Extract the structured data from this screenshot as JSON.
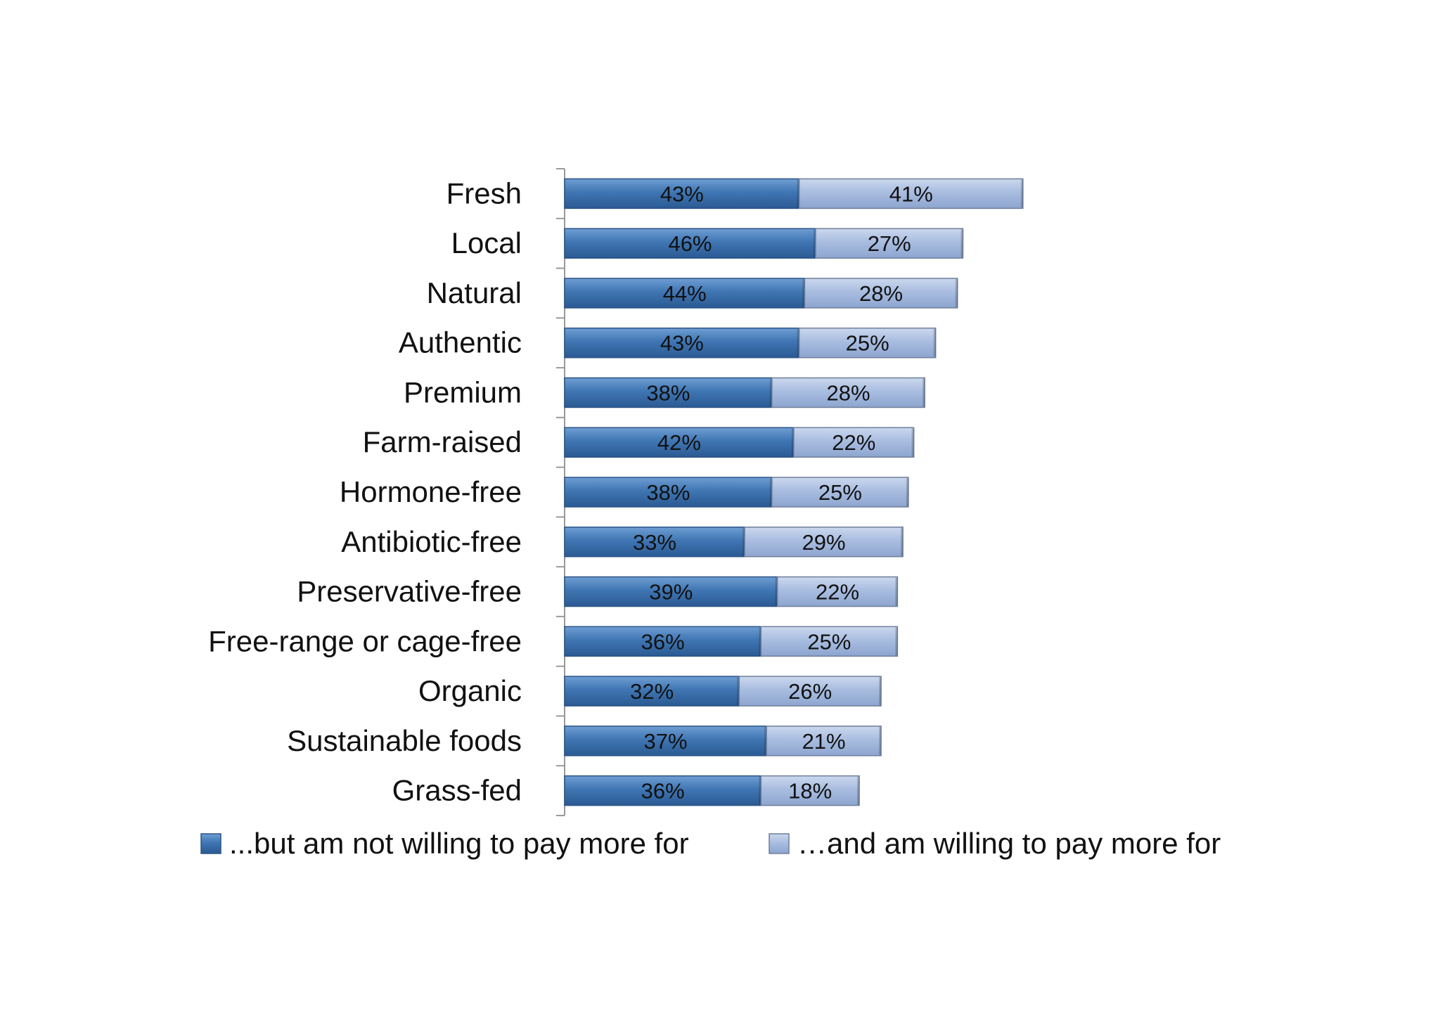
{
  "chart_data": {
    "type": "bar",
    "orientation": "horizontal",
    "stacked": true,
    "categories": [
      "Fresh",
      "Local",
      "Natural",
      "Authentic",
      "Premium",
      "Farm-raised",
      "Hormone-free",
      "Antibiotic-free",
      "Preservative-free",
      "Free-range or cage-free",
      "Organic",
      "Sustainable foods",
      "Grass-fed"
    ],
    "series": [
      {
        "name": "...but am not willing to pay more for",
        "color": "#3f76b3",
        "values": [
          43,
          46,
          44,
          43,
          38,
          42,
          38,
          33,
          39,
          36,
          32,
          37,
          36
        ],
        "labels": [
          "43%",
          "46%",
          "44%",
          "43%",
          "38%",
          "42%",
          "38%",
          "33%",
          "39%",
          "36%",
          "32%",
          "37%",
          "36%"
        ]
      },
      {
        "name": "…and am willing to pay more for",
        "color": "#a9bde0",
        "values": [
          41,
          27,
          28,
          25,
          28,
          22,
          25,
          29,
          22,
          25,
          26,
          21,
          18
        ],
        "labels": [
          "41%",
          "27%",
          "28%",
          "25%",
          "28%",
          "22%",
          "25%",
          "29%",
          "22%",
          "25%",
          "26%",
          "21%",
          "18%"
        ]
      }
    ],
    "xlim": [
      0,
      100
    ],
    "x_axis_visible": false,
    "grid": false,
    "data_labels": "inside-center",
    "legend": "bottom"
  }
}
